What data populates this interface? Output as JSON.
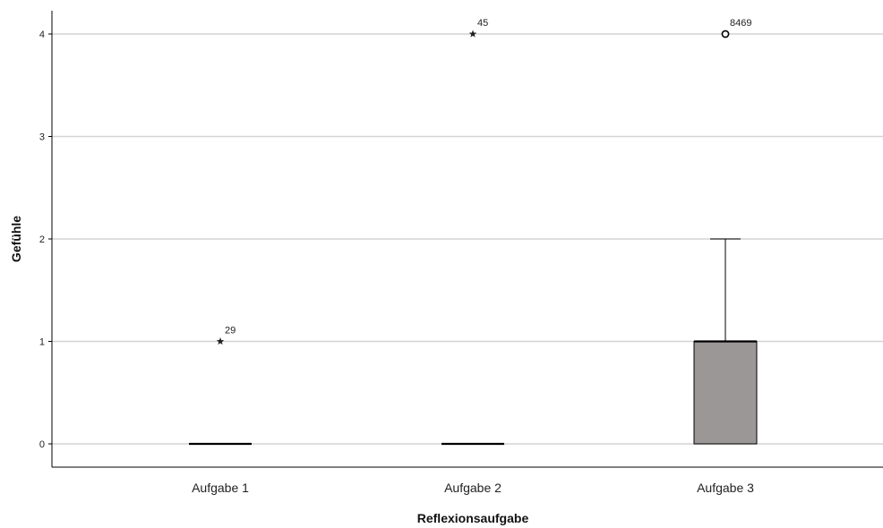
{
  "chart_data": {
    "type": "box",
    "xlabel": "Reflexionsaufgabe",
    "ylabel": "Gefühle",
    "ylim": [
      0,
      4
    ],
    "yticks": [
      0,
      1,
      2,
      3,
      4
    ],
    "ytick_labels": [
      "0",
      "1",
      "2",
      "3",
      "4"
    ],
    "grid": true,
    "colors": {
      "box_fill": "#9b9797",
      "grid": "#d4d4d4"
    },
    "categories": [
      "Aufgabe 1",
      "Aufgabe 2",
      "Aufgabe 3"
    ],
    "boxes": [
      {
        "category": "Aufgabe 1",
        "min": 0,
        "q1": 0,
        "median": 0,
        "q3": 0,
        "max": 0,
        "outliers": [
          {
            "value": 1,
            "marker": "star",
            "label": "29"
          }
        ]
      },
      {
        "category": "Aufgabe 2",
        "min": 0,
        "q1": 0,
        "median": 0,
        "q3": 0,
        "max": 0,
        "outliers": [
          {
            "value": 4,
            "marker": "star",
            "label": "45"
          }
        ]
      },
      {
        "category": "Aufgabe 3",
        "min": 0,
        "q1": 0,
        "median": 1,
        "q3": 1,
        "max": 2,
        "outliers": [
          {
            "value": 4,
            "marker": "circle",
            "label": "8469"
          }
        ]
      }
    ]
  }
}
